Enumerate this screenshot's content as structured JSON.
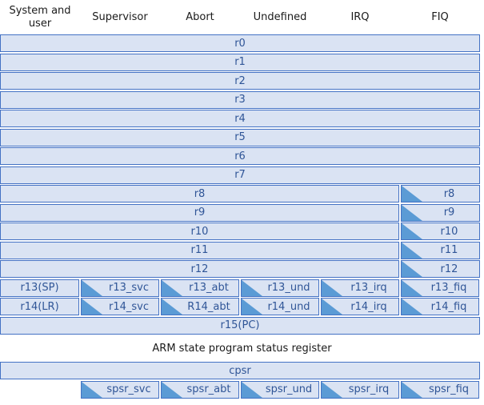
{
  "headers": [
    "System and user",
    "Supervisor",
    "Abort",
    "Undefined",
    "IRQ",
    "FIQ"
  ],
  "full_rows": [
    "r0",
    "r1",
    "r2",
    "r3",
    "r4",
    "r5",
    "r6",
    "r7"
  ],
  "fiq_rows": [
    {
      "shared": "r8",
      "fiq": "r8"
    },
    {
      "shared": "r9",
      "fiq": "r9"
    },
    {
      "shared": "r10",
      "fiq": "r10"
    },
    {
      "shared": "r11",
      "fiq": "r11"
    },
    {
      "shared": "r12",
      "fiq": "r12"
    }
  ],
  "banked_rows": [
    [
      "r13(SP)",
      "r13_svc",
      "r13_abt",
      "r13_und",
      "r13_irq",
      "r13_fiq"
    ],
    [
      "r14(LR)",
      "r14_svc",
      "R14_abt",
      "r14_und",
      "r14_irq",
      "r14_fiq"
    ]
  ],
  "pc": "r15(PC)",
  "psr_label": "ARM state program status register",
  "cpsr": "cpsr",
  "spsr": [
    "spsr_svc",
    "spsr_abt",
    "spsr_und",
    "spsr_irq",
    "spsr_fiq"
  ],
  "colors": {
    "fill": "#dae3f3",
    "border": "#4472c4",
    "text": "#2f5597",
    "triangle": "#5b9bd5"
  }
}
